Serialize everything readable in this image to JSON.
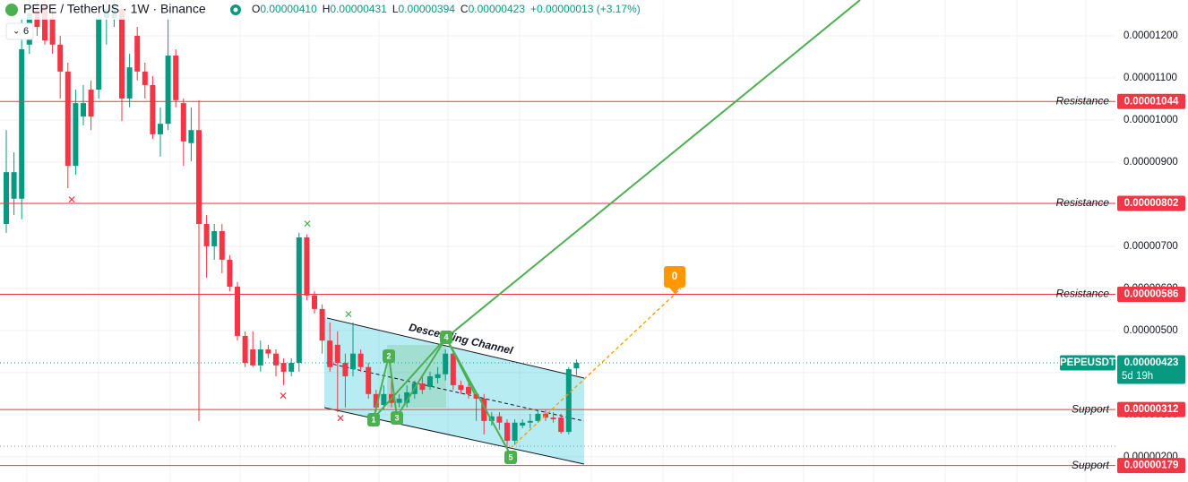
{
  "chart_data": {
    "type": "candlestick",
    "title": "PEPE / TetherUS · 1W · Binance",
    "ohlc": [
      {
        "label": "O",
        "text": "0.00000410"
      },
      {
        "label": "H",
        "text": "0.00000431"
      },
      {
        "label": "L",
        "text": "0.00000394"
      },
      {
        "label": "C",
        "text": "0.00000423"
      }
    ],
    "change": "+0.00000013 (+3.17%)",
    "interval_button": "6",
    "up_color": "#089981",
    "down_color": "#f23645",
    "ylim": [
      1.4e-06,
      1.285e-05
    ],
    "yticks": [
      {
        "value": 2e-06,
        "label": "0.00000200"
      },
      {
        "value": 3e-06,
        "label": "0.00000300"
      },
      {
        "value": 4e-06,
        "label": "0.00000400"
      },
      {
        "value": 5e-06,
        "label": "0.00000500"
      },
      {
        "value": 6e-06,
        "label": "0.00000600"
      },
      {
        "value": 7e-06,
        "label": "0.00000700"
      },
      {
        "value": 8e-06,
        "label": "0.00000800"
      },
      {
        "value": 9e-06,
        "label": "0.00000900"
      },
      {
        "value": 1e-05,
        "label": "0.00001000"
      },
      {
        "value": 1.1e-05,
        "label": "0.00001100"
      },
      {
        "value": 1.2e-05,
        "label": "0.00001200"
      }
    ],
    "grid": true,
    "open": [
      7.53e-06,
      8.13e-06,
      8.13e-06,
      1.179e-05,
      1.264e-05,
      1.274e-05,
      1.242e-05,
      1.179e-05,
      1.115e-05,
      8.91e-06,
      1.008e-05,
      1.072e-05,
      1.072e-05,
      1.242e-05,
      1.242e-05,
      1.264e-05,
      1.051e-05,
      1.2e-05,
      1.115e-05,
      1.083e-05,
      9.66e-06,
      9.91e-06,
      1.153e-05,
      1.04e-05,
      9.45e-06,
      9.76e-06,
      7.53e-06,
      7e-06,
      7.36e-06,
      6.68e-06,
      6.04e-06,
      4.87e-06,
      4.55e-06,
      4.17e-06,
      4.55e-06,
      4.45e-06,
      4.23e-06,
      4.02e-06,
      4.23e-06,
      7.21e-06,
      5.83e-06,
      5.51e-06,
      4.76e-06,
      4.66e-06,
      4.23e-06,
      4.08e-06,
      4.45e-06,
      4.13e-06,
      3.49e-06,
      3.23e-06,
      3.49e-06,
      3.28e-06,
      3.28e-06,
      3.49e-06,
      3.74e-06,
      3.66e-06,
      3.87e-06,
      3.96e-06,
      4.45e-06,
      3.7e-06,
      3.66e-06,
      3.49e-06,
      3.38e-06,
      2.85e-06,
      2.96e-06,
      2.81e-06,
      2.38e-06,
      2.74e-06,
      2.81e-06,
      2.85e-06,
      3.02e-06,
      2.93e-06,
      2.93e-06,
      2.59e-06,
      4.1e-06
    ],
    "high": [
      9.76e-06,
      9.23e-06,
      1.242e-05,
      1.285e-05,
      1.281e-05,
      1.285e-05,
      1.264e-05,
      1.2e-05,
      1.136e-05,
      1.072e-05,
      1.083e-05,
      1.094e-05,
      1.285e-05,
      1.285e-05,
      1.285e-05,
      1.274e-05,
      1.157e-05,
      1.221e-05,
      1.136e-05,
      1.104e-05,
      1.03e-05,
      1.242e-05,
      1.168e-05,
      1.051e-05,
      1.03e-05,
      1.047e-05,
      7.74e-06,
      7.53e-06,
      7.53e-06,
      6.79e-06,
      6.15e-06,
      4.98e-06,
      4.98e-06,
      4.76e-06,
      4.66e-06,
      4.55e-06,
      4.34e-06,
      4.34e-06,
      7.32e-06,
      7.28e-06,
      5.93e-06,
      5.62e-06,
      5.19e-06,
      4.98e-06,
      4.45e-06,
      5.19e-06,
      4.55e-06,
      4.23e-06,
      3.59e-06,
      3.7e-06,
      3.91e-06,
      3.49e-06,
      3.7e-06,
      3.81e-06,
      3.91e-06,
      4.02e-06,
      4.13e-06,
      4.55e-06,
      4.51e-06,
      3.81e-06,
      3.74e-06,
      3.53e-06,
      3.49e-06,
      3.06e-06,
      3.06e-06,
      2.89e-06,
      2.89e-06,
      2.89e-06,
      3.02e-06,
      3.11e-06,
      3.11e-06,
      3.06e-06,
      3.02e-06,
      4.13e-06,
      4.31e-06
    ],
    "low": [
      7.32e-06,
      7.74e-06,
      7.64e-06,
      1.157e-05,
      1.2e-05,
      1.179e-05,
      1.157e-05,
      1.051e-05,
      8.38e-06,
      8.7e-06,
      9.87e-06,
      9.76e-06,
      1.051e-05,
      1.179e-05,
      1.221e-05,
      9.98e-06,
      1.03e-05,
      1.094e-05,
      1.051e-05,
      9.55e-06,
      9.13e-06,
      9.76e-06,
      1.03e-05,
      8.91e-06,
      9.02e-06,
      2.85e-06,
      6.25e-06,
      6.68e-06,
      6.36e-06,
      5.93e-06,
      4.76e-06,
      4.13e-06,
      4.13e-06,
      4.02e-06,
      4.34e-06,
      3.91e-06,
      3.7e-06,
      3.91e-06,
      4.02e-06,
      5.72e-06,
      5.4e-06,
      4.45e-06,
      4.02e-06,
      3.06e-06,
      3.17e-06,
      3.91e-06,
      4.02e-06,
      3.38e-06,
      3.06e-06,
      3.11e-06,
      3.17e-06,
      3.17e-06,
      3.17e-06,
      3.38e-06,
      3.49e-06,
      3.59e-06,
      3.74e-06,
      3.81e-06,
      3.59e-06,
      3.49e-06,
      3.38e-06,
      2.85e-06,
      2.53e-06,
      2.74e-06,
      2.64e-06,
      2.21e-06,
      2.28e-06,
      2.68e-06,
      2.68e-06,
      2.81e-06,
      2.85e-06,
      2.81e-06,
      2.55e-06,
      2.53e-06,
      3.94e-06
    ],
    "close": [
      8.76e-06,
      8.76e-06,
      1.168e-05,
      1.253e-05,
      1.221e-05,
      1.189e-05,
      1.179e-05,
      1.115e-05,
      8.91e-06,
      1.04e-05,
      1.04e-05,
      1.008e-05,
      1.242e-05,
      1.264e-05,
      1.274e-05,
      1.051e-05,
      1.125e-05,
      1.115e-05,
      1.083e-05,
      9.66e-06,
      9.91e-06,
      1.153e-05,
      1.047e-05,
      9.49e-06,
      9.76e-06,
      7.53e-06,
      7e-06,
      7.36e-06,
      6.68e-06,
      6.04e-06,
      4.87e-06,
      4.23e-06,
      4.17e-06,
      4.55e-06,
      4.45e-06,
      4.17e-06,
      4.02e-06,
      4.23e-06,
      7.21e-06,
      5.83e-06,
      5.51e-06,
      4.76e-06,
      4.13e-06,
      4.23e-06,
      3.91e-06,
      4.45e-06,
      4.13e-06,
      3.49e-06,
      3.17e-06,
      3.49e-06,
      3.28e-06,
      3.38e-06,
      3.53e-06,
      3.74e-06,
      3.59e-06,
      3.91e-06,
      3.96e-06,
      4.45e-06,
      3.7e-06,
      3.59e-06,
      3.49e-06,
      3.38e-06,
      2.85e-06,
      2.96e-06,
      2.81e-06,
      2.38e-06,
      2.81e-06,
      2.81e-06,
      2.85e-06,
      3.02e-06,
      2.93e-06,
      2.89e-06,
      2.59e-06,
      4.08e-06,
      4.23e-06
    ],
    "levels": [
      {
        "name": "Resistance",
        "value": 1.044e-05,
        "label": "0.00001044"
      },
      {
        "name": "Resistance",
        "value": 8.02e-06,
        "label": "0.00000802"
      },
      {
        "name": "Resistance",
        "value": 5.86e-06,
        "label": "0.00000586"
      },
      {
        "name": "Support",
        "value": 3.12e-06,
        "label": "0.00000312"
      },
      {
        "name": "Support",
        "value": 1.79e-06,
        "label": "0.00000179"
      }
    ],
    "level_color": "#f23645",
    "price_line": {
      "symbol": "PEPEUSDT",
      "value": 4.23e-06,
      "label": "0.00000423",
      "countdown": "5d 19h"
    },
    "annotations": {
      "channel": "Descending Channel",
      "points": [
        "1",
        "2",
        "3",
        "4",
        "5"
      ],
      "target": "0"
    }
  }
}
